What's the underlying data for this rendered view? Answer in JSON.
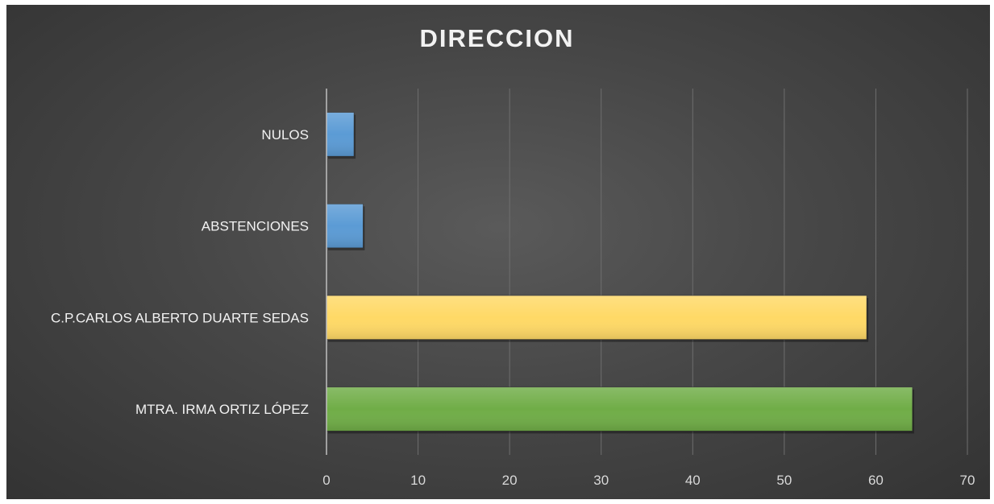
{
  "chart_data": {
    "type": "bar",
    "orientation": "horizontal",
    "title": "DIRECCION",
    "categories": [
      "NULOS",
      "ABSTENCIONES",
      "C.P.CARLOS ALBERTO DUARTE SEDAS",
      "MTRA. IRMA ORTIZ LÓPEZ"
    ],
    "values": [
      3,
      4,
      59,
      64
    ],
    "colors": [
      "#5b9bd5",
      "#5b9bd5",
      "#ffd966",
      "#70ad47"
    ],
    "xlim": [
      0,
      70
    ],
    "xticks": [
      0,
      10,
      20,
      30,
      40,
      50,
      60,
      70
    ],
    "grid": true,
    "legend": "none"
  }
}
